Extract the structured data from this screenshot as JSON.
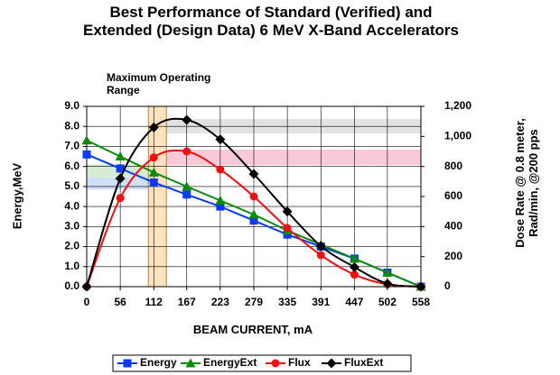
{
  "chart_data": {
    "type": "line",
    "title": "Best Performance of Standard (Verified) and Extended (Design Data) 6 MeV X-Band Accelerators",
    "annotation": "Maximum Operating Range",
    "x_label": "BEAM CURRENT, mA",
    "y_label": "Energy,MeV",
    "y2_label": "Dose Rate @ 0.8 meter, Rad/min, @200 pps",
    "x": [
      0,
      56,
      112,
      167,
      223,
      279,
      335,
      391,
      447,
      502,
      558
    ],
    "xlim": [
      0,
      558
    ],
    "xticks": [
      0,
      56,
      112,
      167,
      223,
      279,
      335,
      391,
      447,
      502,
      558
    ],
    "ylim": [
      0,
      9
    ],
    "yticks": [
      {
        "value": 0,
        "label": "0.0"
      },
      {
        "value": 1,
        "label": "1.0"
      },
      {
        "value": 2,
        "label": "2.0"
      },
      {
        "value": 3,
        "label": "3.0"
      },
      {
        "value": 4,
        "label": "4.0"
      },
      {
        "value": 5,
        "label": "5.0"
      },
      {
        "value": 6,
        "label": "6.0"
      },
      {
        "value": 7,
        "label": "7.0"
      },
      {
        "value": 8,
        "label": "8.0"
      },
      {
        "value": 9,
        "label": "9.0"
      }
    ],
    "y2lim": [
      0,
      1200
    ],
    "y2ticks": [
      0,
      200,
      400,
      600,
      800,
      {
        "value": 1000,
        "label": "1,000"
      },
      {
        "value": 1200,
        "label": "1,200"
      }
    ],
    "grid": true,
    "legend": "bottom",
    "operating_range": {
      "from": 103,
      "to": 133,
      "color": "#fbe3bf"
    },
    "bands": [
      {
        "axis": "y",
        "from": 5.45,
        "to": 6.1,
        "x_from": 0,
        "x_to": 103,
        "color": "#d6ecd2"
      },
      {
        "axis": "y",
        "from": 4.85,
        "to": 5.45,
        "x_from": 0,
        "x_to": 103,
        "color": "#cfdff5"
      },
      {
        "axis": "y2",
        "from": 1020,
        "to": 1116,
        "x_from": 133,
        "x_to": 558,
        "color": "#e2e2e2"
      },
      {
        "axis": "y2",
        "from": 810,
        "to": 912,
        "x_from": 133,
        "x_to": 558,
        "color": "#f9c9d8"
      }
    ],
    "series": [
      {
        "name": "Energy",
        "color": "#0b3bf5",
        "marker": "square",
        "axis": "y",
        "values": [
          6.6,
          5.9,
          5.2,
          4.6,
          4.0,
          3.3,
          2.6,
          2.0,
          1.4,
          0.7,
          0.0
        ]
      },
      {
        "name": "EnergyExt",
        "color": "#0a8a0a",
        "marker": "triangle",
        "axis": "y",
        "values": [
          7.3,
          6.5,
          5.7,
          5.0,
          4.3,
          3.6,
          2.8,
          2.1,
          1.4,
          0.7,
          0.0
        ]
      },
      {
        "name": "Flux",
        "color": "#f01010",
        "marker": "circle",
        "axis": "y2",
        "values": [
          0,
          590,
          860,
          900,
          780,
          600,
          390,
          210,
          80,
          15,
          0
        ]
      },
      {
        "name": "FluxExt",
        "color": "#000000",
        "marker": "diamond",
        "axis": "y2",
        "values": [
          0,
          720,
          1060,
          1110,
          980,
          750,
          500,
          270,
          130,
          20,
          0
        ]
      }
    ]
  }
}
